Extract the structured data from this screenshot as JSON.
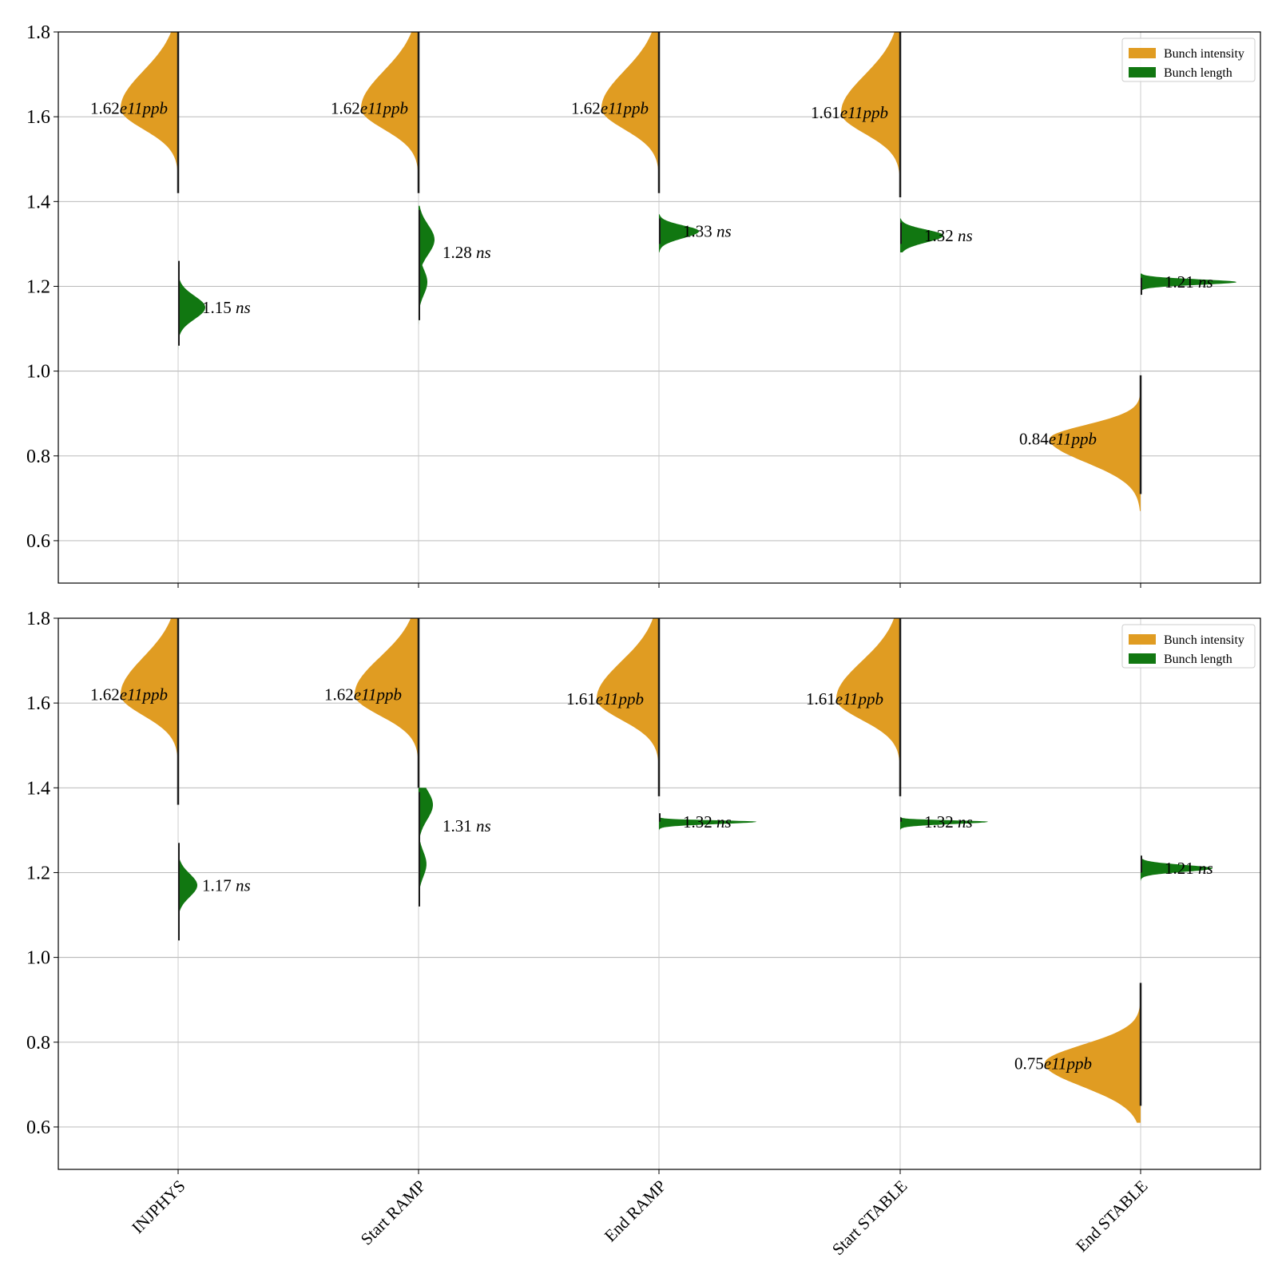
{
  "chart_data": [
    {
      "type": "violin",
      "panel": "top",
      "ylim": [
        0.5,
        1.8
      ],
      "yticks": [
        "0.6",
        "0.8",
        "1.0",
        "1.2",
        "1.4",
        "1.6",
        "1.8"
      ],
      "grid": true,
      "legend": {
        "position": "top-right",
        "entries": [
          {
            "label": "Bunch intensity",
            "color": "#e09c22"
          },
          {
            "label": "Bunch length",
            "color": "#117711"
          }
        ]
      },
      "categories": [
        "INJPHYS",
        "Start RAMP",
        "End RAMP",
        "Start STABLE",
        "End STABLE"
      ],
      "series": [
        {
          "name": "Bunch intensity",
          "side": "left",
          "color": "#e09c22",
          "medians": [
            1.62,
            1.62,
            1.62,
            1.61,
            0.84
          ],
          "labels": [
            {
              "num": "1.62",
              "unit": "e11ppb"
            },
            {
              "num": "1.62",
              "unit": "e11ppb"
            },
            {
              "num": "1.62",
              "unit": "e11ppb"
            },
            {
              "num": "1.61",
              "unit": "e11ppb"
            },
            {
              "num": "0.84",
              "unit": "e11ppb"
            }
          ]
        },
        {
          "name": "Bunch length",
          "side": "right",
          "color": "#117711",
          "medians": [
            1.15,
            1.28,
            1.33,
            1.32,
            1.21
          ],
          "labels": [
            {
              "num": "1.15",
              "unit": "ns"
            },
            {
              "num": "1.28",
              "unit": "ns"
            },
            {
              "num": "1.33",
              "unit": "ns"
            },
            {
              "num": "1.32",
              "unit": "ns"
            },
            {
              "num": "1.21",
              "unit": "ns"
            }
          ]
        }
      ]
    },
    {
      "type": "violin",
      "panel": "bottom",
      "ylim": [
        0.5,
        1.8
      ],
      "yticks": [
        "0.6",
        "0.8",
        "1.0",
        "1.2",
        "1.4",
        "1.6",
        "1.8"
      ],
      "grid": true,
      "legend": {
        "position": "top-right",
        "entries": [
          {
            "label": "Bunch intensity",
            "color": "#e09c22"
          },
          {
            "label": "Bunch length",
            "color": "#117711"
          }
        ]
      },
      "categories": [
        "INJPHYS",
        "Start RAMP",
        "End RAMP",
        "Start STABLE",
        "End STABLE"
      ],
      "series": [
        {
          "name": "Bunch intensity",
          "side": "left",
          "color": "#e09c22",
          "medians": [
            1.62,
            1.62,
            1.61,
            1.61,
            0.75
          ],
          "labels": [
            {
              "num": "1.62",
              "unit": "e11ppb"
            },
            {
              "num": "1.62",
              "unit": "e11ppb"
            },
            {
              "num": "1.61",
              "unit": "e11ppb"
            },
            {
              "num": "1.61",
              "unit": "e11ppb"
            },
            {
              "num": "0.75",
              "unit": "e11ppb"
            }
          ]
        },
        {
          "name": "Bunch length",
          "side": "right",
          "color": "#117711",
          "medians": [
            1.17,
            1.31,
            1.32,
            1.32,
            1.21
          ],
          "labels": [
            {
              "num": "1.17",
              "unit": "ns"
            },
            {
              "num": "1.31",
              "unit": "ns"
            },
            {
              "num": "1.32",
              "unit": "ns"
            },
            {
              "num": "1.32",
              "unit": "ns"
            },
            {
              "num": "1.21",
              "unit": "ns"
            }
          ]
        }
      ]
    }
  ],
  "x_labels": [
    "INJPHYS",
    "Start RAMP",
    "End RAMP",
    "Start STABLE",
    "End STABLE"
  ]
}
